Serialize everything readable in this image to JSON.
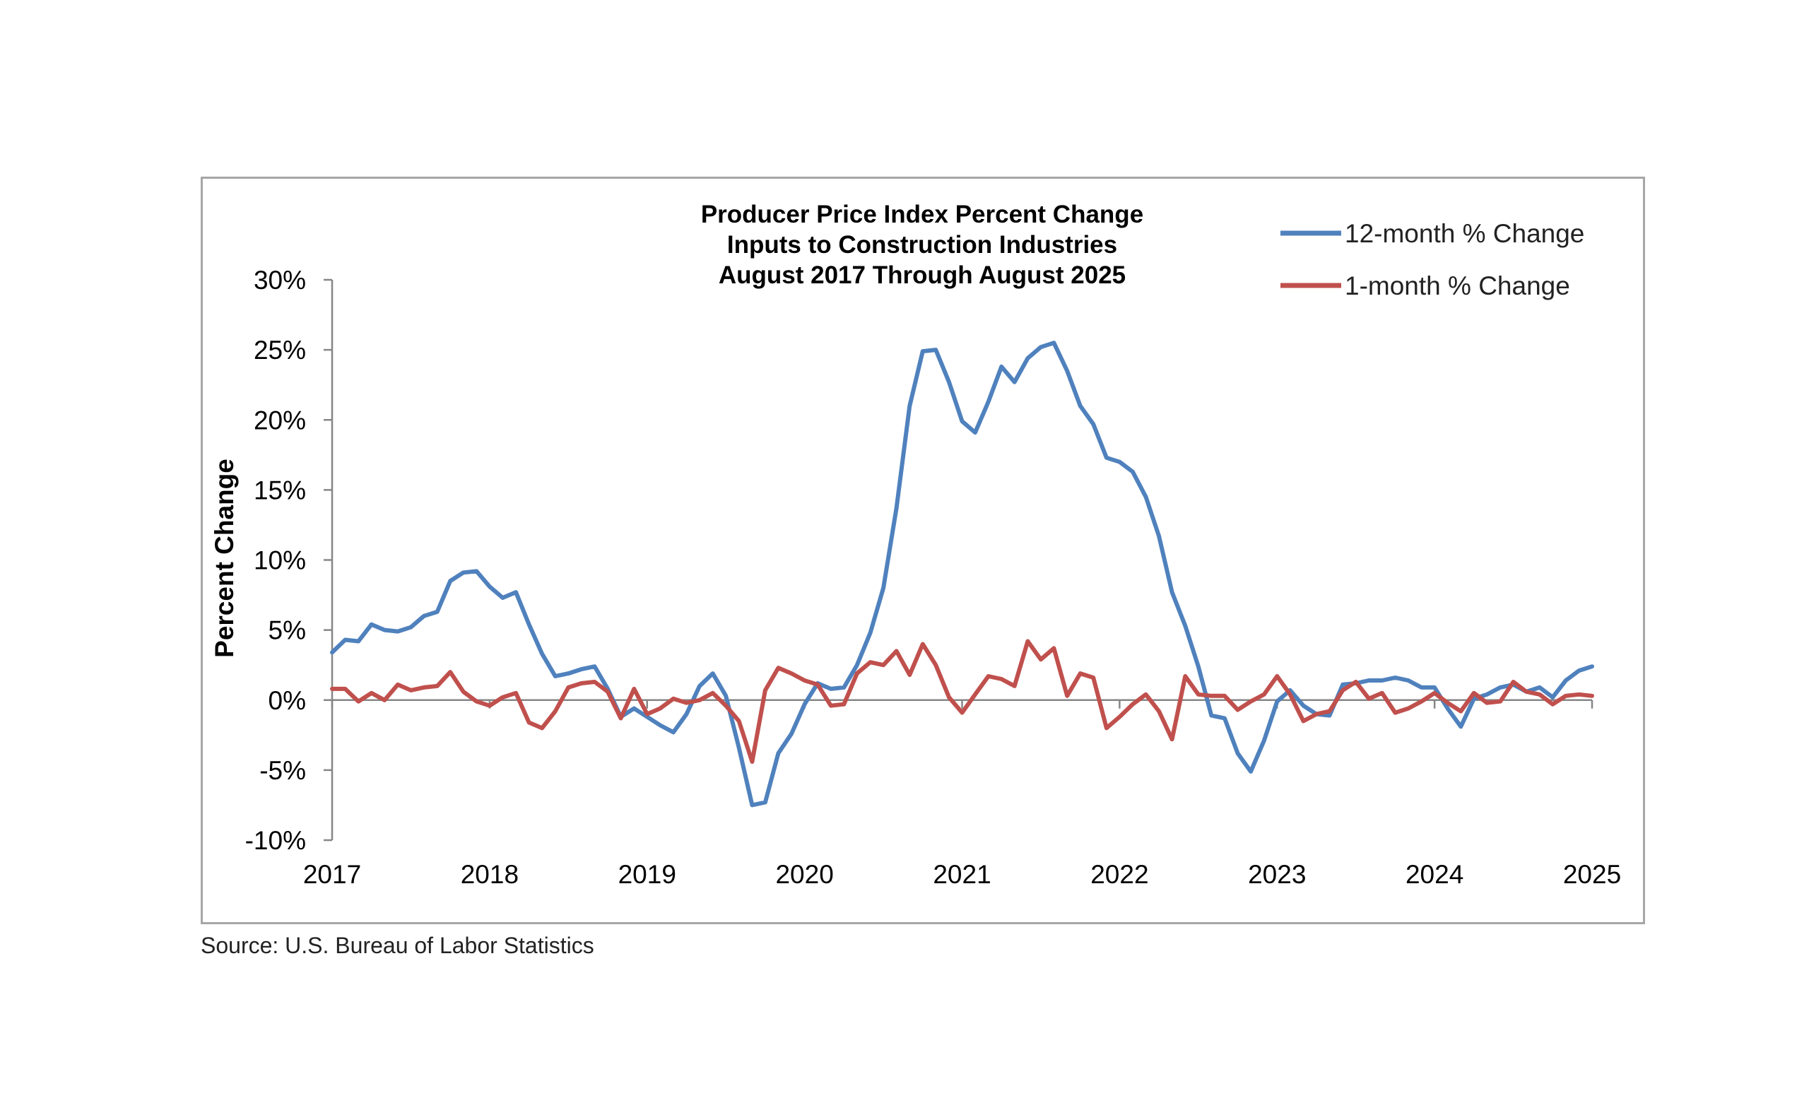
{
  "source": "Source: U.S. Bureau of Labor Statistics",
  "chart_data": {
    "type": "line",
    "title": [
      "Producer Price Index Percent Change",
      "Inputs to Construction Industries",
      "August 2017 Through August 2025"
    ],
    "xlabel": "",
    "ylabel": "Percent Change",
    "ylim": [
      -10,
      30
    ],
    "yticks": [
      -10,
      -5,
      0,
      5,
      10,
      15,
      20,
      25,
      30
    ],
    "ytick_labels": [
      "-10%",
      "-5%",
      "0%",
      "5%",
      "10%",
      "15%",
      "20%",
      "25%",
      "30%"
    ],
    "xlim": [
      2017,
      2025
    ],
    "xticks": [
      2017,
      2018,
      2019,
      2020,
      2021,
      2022,
      2023,
      2024,
      2025
    ],
    "xtick_labels": [
      "2017",
      "2018",
      "2019",
      "2020",
      "2021",
      "2022",
      "2023",
      "2024",
      "2025"
    ],
    "grid": false,
    "legend": "top-right",
    "x": [
      2017.0,
      2017.083,
      2017.167,
      2017.25,
      2017.333,
      2017.417,
      2017.5,
      2017.583,
      2017.667,
      2017.75,
      2017.833,
      2017.917,
      2018.0,
      2018.083,
      2018.167,
      2018.25,
      2018.333,
      2018.417,
      2018.5,
      2018.583,
      2018.667,
      2018.75,
      2018.833,
      2018.917,
      2019.0,
      2019.083,
      2019.167,
      2019.25,
      2019.333,
      2019.417,
      2019.5,
      2019.583,
      2019.667,
      2019.75,
      2019.833,
      2019.917,
      2020.0,
      2020.083,
      2020.167,
      2020.25,
      2020.333,
      2020.417,
      2020.5,
      2020.583,
      2020.667,
      2020.75,
      2020.833,
      2020.917,
      2021.0,
      2021.083,
      2021.167,
      2021.25,
      2021.333,
      2021.417,
      2021.5,
      2021.583,
      2021.667,
      2021.75,
      2021.833,
      2021.917,
      2022.0,
      2022.083,
      2022.167,
      2022.25,
      2022.333,
      2022.417,
      2022.5,
      2022.583,
      2022.667,
      2022.75,
      2022.833,
      2022.917,
      2023.0,
      2023.083,
      2023.167,
      2023.25,
      2023.333,
      2023.417,
      2023.5,
      2023.583,
      2023.667,
      2023.75,
      2023.833,
      2023.917,
      2024.0,
      2024.083,
      2024.167,
      2024.25,
      2024.333,
      2024.417,
      2024.5,
      2024.583,
      2024.667,
      2024.75,
      2024.833,
      2024.917,
      2025.0
    ],
    "series": [
      {
        "name": "12-month % Change",
        "color": "#4f81bd",
        "values": [
          3.4,
          4.3,
          4.2,
          5.4,
          5.0,
          4.9,
          5.2,
          6.0,
          6.3,
          8.5,
          9.1,
          9.2,
          8.1,
          7.3,
          7.7,
          5.4,
          3.3,
          1.7,
          1.9,
          2.2,
          2.4,
          0.8,
          -1.2,
          -0.6,
          -1.2,
          -1.8,
          -2.3,
          -1.0,
          1.0,
          1.9,
          0.3,
          -3.4,
          -7.5,
          -7.3,
          -3.8,
          -2.4,
          -0.3,
          1.2,
          0.8,
          0.9,
          2.5,
          4.8,
          8.0,
          13.7,
          21.0,
          24.9,
          25.0,
          22.7,
          19.9,
          19.1,
          21.3,
          23.8,
          22.7,
          24.4,
          25.2,
          25.5,
          23.5,
          21.0,
          19.7,
          17.3,
          17.0,
          16.3,
          14.5,
          11.7,
          7.7,
          5.3,
          2.4,
          -1.1,
          -1.3,
          -3.8,
          -5.1,
          -2.9,
          -0.1,
          0.7,
          -0.4,
          -1.0,
          -1.1,
          1.1,
          1.2,
          1.4,
          1.4,
          1.6,
          1.4,
          0.9,
          0.9,
          -0.6,
          -1.9,
          0.1,
          0.4,
          0.9,
          1.1,
          0.6,
          0.9,
          0.2,
          1.4,
          2.1,
          2.4
        ]
      },
      {
        "name": "1-month % Change",
        "color": "#c0504d",
        "values": [
          0.8,
          0.8,
          -0.1,
          0.5,
          0.0,
          1.1,
          0.7,
          0.9,
          1.0,
          2.0,
          0.6,
          -0.1,
          -0.4,
          0.2,
          0.5,
          -1.6,
          -2.0,
          -0.8,
          0.9,
          1.2,
          1.3,
          0.6,
          -1.3,
          0.8,
          -1.0,
          -0.6,
          0.1,
          -0.2,
          0.0,
          0.5,
          -0.4,
          -1.5,
          -4.4,
          0.7,
          2.3,
          1.9,
          1.4,
          1.1,
          -0.4,
          -0.3,
          1.9,
          2.7,
          2.5,
          3.5,
          1.8,
          4.0,
          2.5,
          0.2,
          -0.9,
          0.4,
          1.7,
          1.5,
          1.0,
          4.2,
          2.9,
          3.7,
          0.3,
          1.9,
          1.6,
          -2.0,
          -1.2,
          -0.3,
          0.4,
          -0.8,
          -2.8,
          1.7,
          0.4,
          0.3,
          0.3,
          -0.7,
          -0.1,
          0.4,
          1.7,
          0.4,
          -1.5,
          -1.0,
          -0.8,
          0.7,
          1.3,
          0.1,
          0.5,
          -0.9,
          -0.6,
          -0.1,
          0.5,
          -0.2,
          -0.8,
          0.5,
          -0.2,
          -0.1,
          1.3,
          0.6,
          0.4,
          -0.3,
          0.3,
          0.4,
          0.3
        ]
      }
    ]
  }
}
